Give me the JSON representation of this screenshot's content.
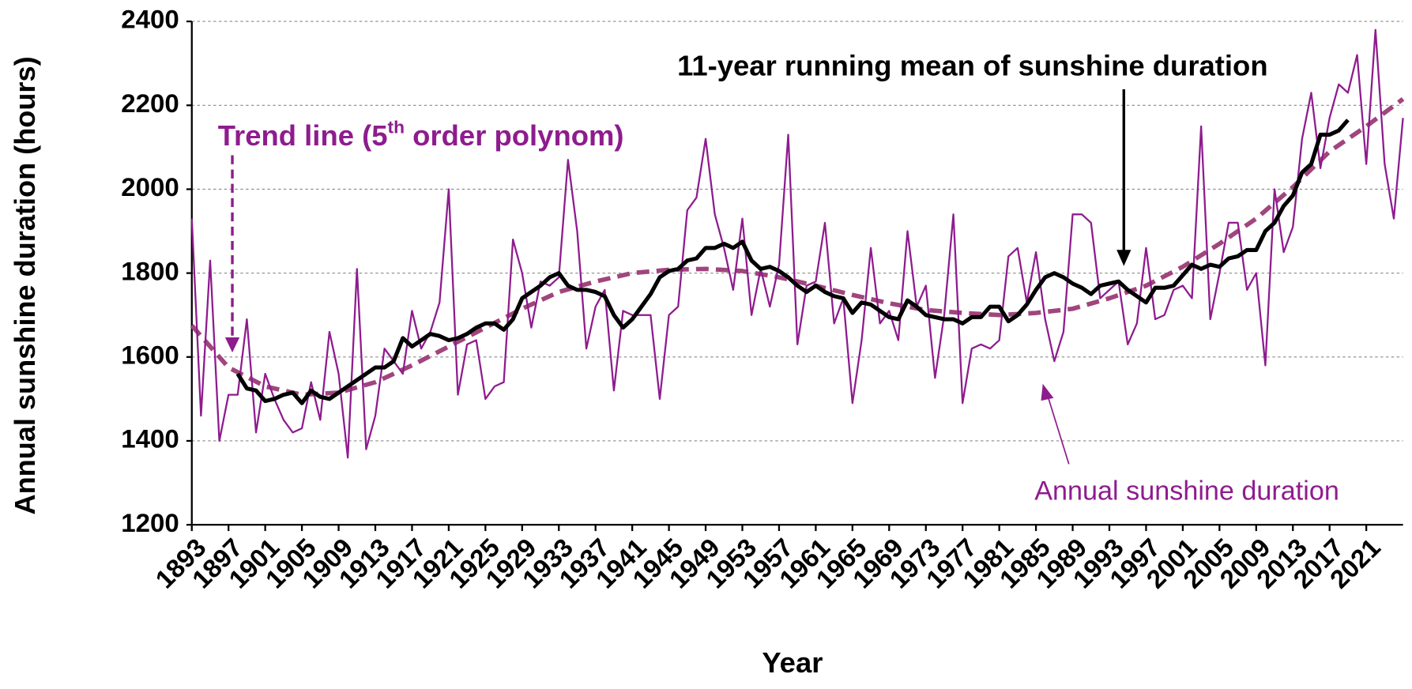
{
  "chart_data": {
    "type": "line",
    "x_label": "Year",
    "y_label": "Annual sunshine duration (hours)",
    "x": [
      1893,
      1894,
      1895,
      1896,
      1897,
      1898,
      1899,
      1900,
      1901,
      1902,
      1903,
      1904,
      1905,
      1906,
      1907,
      1908,
      1909,
      1910,
      1911,
      1912,
      1913,
      1914,
      1915,
      1916,
      1917,
      1918,
      1919,
      1920,
      1921,
      1922,
      1923,
      1924,
      1925,
      1926,
      1927,
      1928,
      1929,
      1930,
      1931,
      1932,
      1933,
      1934,
      1935,
      1936,
      1937,
      1938,
      1939,
      1940,
      1941,
      1942,
      1943,
      1944,
      1945,
      1946,
      1947,
      1948,
      1949,
      1950,
      1951,
      1952,
      1953,
      1954,
      1955,
      1956,
      1957,
      1958,
      1959,
      1960,
      1961,
      1962,
      1963,
      1964,
      1965,
      1966,
      1967,
      1968,
      1969,
      1970,
      1971,
      1972,
      1973,
      1974,
      1975,
      1976,
      1977,
      1978,
      1979,
      1980,
      1981,
      1982,
      1983,
      1984,
      1985,
      1986,
      1987,
      1988,
      1989,
      1990,
      1991,
      1992,
      1993,
      1994,
      1995,
      1996,
      1997,
      1998,
      1999,
      2000,
      2001,
      2002,
      2003,
      2004,
      2005,
      2006,
      2007,
      2008,
      2009,
      2010,
      2011,
      2012,
      2013,
      2014,
      2015,
      2016,
      2017,
      2018,
      2019,
      2020,
      2021,
      2022,
      2023,
      2024,
      2025
    ],
    "series": [
      {
        "name": "Annual sunshine duration",
        "color": "#8e1c8e",
        "style": "solid",
        "width": 2,
        "values": [
          1930,
          1460,
          1830,
          1400,
          1510,
          1510,
          1690,
          1420,
          1560,
          1500,
          1450,
          1420,
          1430,
          1540,
          1450,
          1660,
          1560,
          1360,
          1810,
          1380,
          1460,
          1620,
          1590,
          1560,
          1710,
          1620,
          1660,
          1730,
          2000,
          1510,
          1630,
          1640,
          1500,
          1530,
          1540,
          1880,
          1800,
          1670,
          1780,
          1770,
          1790,
          2070,
          1900,
          1620,
          1720,
          1760,
          1520,
          1710,
          1700,
          1700,
          1700,
          1500,
          1700,
          1720,
          1950,
          1980,
          2120,
          1940,
          1860,
          1760,
          1930,
          1700,
          1810,
          1720,
          1820,
          2130,
          1630,
          1770,
          1780,
          1920,
          1680,
          1740,
          1490,
          1640,
          1860,
          1680,
          1710,
          1640,
          1900,
          1720,
          1770,
          1550,
          1700,
          1940,
          1490,
          1620,
          1630,
          1620,
          1640,
          1840,
          1860,
          1730,
          1850,
          1690,
          1590,
          1660,
          1940,
          1940,
          1920,
          1740,
          1760,
          1780,
          1630,
          1680,
          1860,
          1690,
          1700,
          1760,
          1770,
          1740,
          2150,
          1690,
          1800,
          1920,
          1920,
          1760,
          1800,
          1580,
          2000,
          1850,
          1910,
          2120,
          2230,
          2050,
          2170,
          2250,
          2230,
          2320,
          2060,
          2380,
          2060,
          1930,
          2170
        ]
      },
      {
        "name": "11-year running mean of sunshine duration",
        "color": "#000000",
        "style": "solid",
        "width": 4.5,
        "values": [
          null,
          null,
          null,
          null,
          null,
          1560,
          1525,
          1520,
          1495,
          1500,
          1510,
          1515,
          1490,
          1520,
          1505,
          1500,
          1515,
          1530,
          1545,
          1560,
          1575,
          1575,
          1590,
          1645,
          1625,
          1640,
          1655,
          1650,
          1640,
          1645,
          1655,
          1670,
          1680,
          1680,
          1665,
          1690,
          1740,
          1755,
          1770,
          1790,
          1800,
          1770,
          1760,
          1760,
          1755,
          1745,
          1700,
          1670,
          1690,
          1720,
          1750,
          1790,
          1805,
          1810,
          1830,
          1835,
          1860,
          1860,
          1870,
          1860,
          1875,
          1830,
          1810,
          1815,
          1805,
          1790,
          1770,
          1755,
          1770,
          1755,
          1745,
          1740,
          1705,
          1730,
          1725,
          1710,
          1695,
          1690,
          1735,
          1720,
          1700,
          1695,
          1690,
          1690,
          1680,
          1695,
          1695,
          1720,
          1720,
          1685,
          1700,
          1725,
          1760,
          1790,
          1800,
          1790,
          1775,
          1765,
          1750,
          1770,
          1775,
          1780,
          1760,
          1745,
          1730,
          1765,
          1765,
          1770,
          1795,
          1820,
          1810,
          1820,
          1815,
          1835,
          1840,
          1855,
          1855,
          1900,
          1920,
          1960,
          1985,
          2040,
          2060,
          2130,
          2130,
          2140,
          2165,
          null,
          null,
          null,
          null,
          null,
          null
        ]
      },
      {
        "name": "Trend line (5th order polynom)",
        "color": "#a0457e",
        "style": "dashed",
        "width": 5,
        "x": [
          1893,
          1897,
          1901,
          1905,
          1909,
          1913,
          1917,
          1921,
          1925,
          1929,
          1933,
          1937,
          1941,
          1945,
          1949,
          1953,
          1957,
          1961,
          1965,
          1969,
          1973,
          1977,
          1981,
          1985,
          1989,
          1993,
          1997,
          2001,
          2005,
          2009,
          2013,
          2017,
          2021,
          2025
        ],
        "values": [
          1675,
          1575,
          1530,
          1510,
          1515,
          1540,
          1580,
          1625,
          1670,
          1715,
          1755,
          1780,
          1800,
          1808,
          1810,
          1805,
          1790,
          1770,
          1748,
          1728,
          1712,
          1705,
          1700,
          1705,
          1715,
          1740,
          1770,
          1815,
          1870,
          1930,
          2005,
          2090,
          2150,
          2215
        ]
      }
    ],
    "annotations": [
      {
        "text": "11-year running mean of sunshine duration",
        "color": "#000000"
      },
      {
        "parts": [
          "Trend line (5",
          "th",
          " order polynom)"
        ],
        "color": "#8e1c8e"
      },
      {
        "text": "Annual sunshine duration",
        "color": "#8e1c8e"
      }
    ],
    "xlim": [
      1893,
      2025
    ],
    "xticks": [
      1893,
      1897,
      1901,
      1905,
      1909,
      1913,
      1917,
      1921,
      1925,
      1929,
      1933,
      1937,
      1941,
      1945,
      1949,
      1953,
      1957,
      1961,
      1965,
      1969,
      1973,
      1977,
      1981,
      1985,
      1989,
      1993,
      1997,
      2001,
      2005,
      2009,
      2013,
      2017,
      2021
    ],
    "ylim": [
      1200,
      2400
    ],
    "yticks": [
      1200,
      1400,
      1600,
      1800,
      2000,
      2200,
      2400
    ],
    "grid": true
  }
}
